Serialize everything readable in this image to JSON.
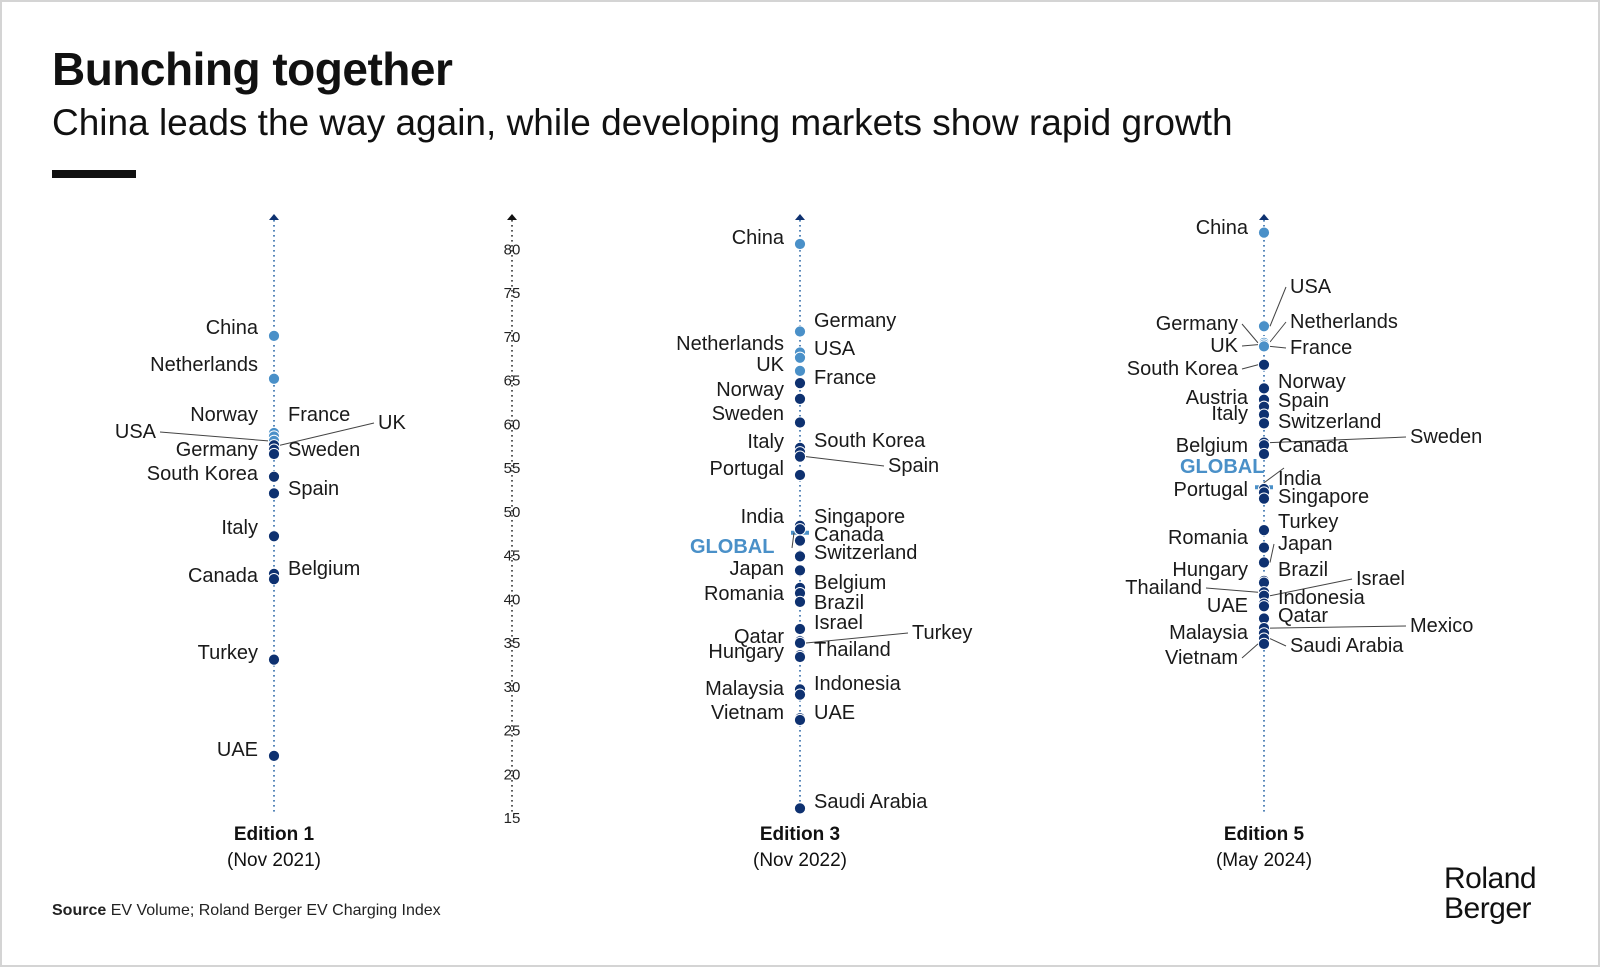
{
  "title": "Bunching together",
  "subtitle": "China leads the way again, while developing markets show rapid growth",
  "source_label": "Source",
  "source_text": "EV Volume; Roland Berger EV Charging Index",
  "logo": {
    "line1": "Roland",
    "line2": "Berger"
  },
  "colors": {
    "light_blue": "#4a90c8",
    "dark_blue": "#0e3170",
    "text": "#1a1a1a"
  },
  "chart_data": {
    "type": "scatter",
    "title": "Bunching together",
    "ylim": [
      15,
      82
    ],
    "yticks": [
      15,
      20,
      25,
      30,
      35,
      40,
      45,
      50,
      55,
      60,
      65,
      70,
      75,
      80
    ],
    "editions": [
      {
        "name": "Edition 1",
        "date": "(Nov 2021)",
        "points": [
          {
            "label": "China",
            "value": 70.1,
            "side": "left",
            "highlight": true
          },
          {
            "label": "Netherlands",
            "value": 65.2,
            "side": "left",
            "highlight": true
          },
          {
            "label": "Norway",
            "value": 59.0,
            "side": "left",
            "highlight": true
          },
          {
            "label": "France",
            "value": 58.6,
            "side": "right",
            "highlight": true
          },
          {
            "label": "USA",
            "value": 58.1,
            "side": "left-far",
            "highlight": true
          },
          {
            "label": "UK",
            "value": 57.6,
            "side": "right-far",
            "highlight": false
          },
          {
            "label": "Germany",
            "value": 57.1,
            "side": "left",
            "highlight": false
          },
          {
            "label": "Sweden",
            "value": 56.6,
            "side": "right",
            "highlight": false
          },
          {
            "label": "South Korea",
            "value": 54.0,
            "side": "left",
            "highlight": false
          },
          {
            "label": "Spain",
            "value": 52.1,
            "side": "right",
            "highlight": false
          },
          {
            "label": "Italy",
            "value": 47.2,
            "side": "left",
            "highlight": false
          },
          {
            "label": "Belgium",
            "value": 42.9,
            "side": "right",
            "highlight": false
          },
          {
            "label": "Canada",
            "value": 42.3,
            "side": "left",
            "highlight": false
          },
          {
            "label": "Turkey",
            "value": 33.1,
            "side": "left",
            "highlight": false
          },
          {
            "label": "UAE",
            "value": 22.1,
            "side": "left",
            "highlight": false
          }
        ]
      },
      {
        "name": "Edition 3",
        "date": "(Nov 2022)",
        "global_label": "GLOBAL",
        "global_value": 47.6,
        "points": [
          {
            "label": "China",
            "value": 80.6,
            "side": "left",
            "highlight": true
          },
          {
            "label": "Germany",
            "value": 70.6,
            "side": "right",
            "highlight": true
          },
          {
            "label": "Netherlands",
            "value": 68.2,
            "side": "left",
            "highlight": true
          },
          {
            "label": "USA",
            "value": 67.6,
            "side": "right",
            "highlight": true
          },
          {
            "label": "UK",
            "value": 66.1,
            "side": "left",
            "highlight": true
          },
          {
            "label": "France",
            "value": 64.7,
            "side": "right",
            "highlight": false
          },
          {
            "label": "Norway",
            "value": 62.9,
            "side": "left",
            "highlight": false
          },
          {
            "label": "Sweden",
            "value": 60.2,
            "side": "left",
            "highlight": false
          },
          {
            "label": "South Korea",
            "value": 57.3,
            "side": "right",
            "highlight": false
          },
          {
            "label": "Italy",
            "value": 56.8,
            "side": "left",
            "highlight": false
          },
          {
            "label": "Spain",
            "value": 56.3,
            "side": "right-far",
            "highlight": false
          },
          {
            "label": "Portugal",
            "value": 54.2,
            "side": "left",
            "highlight": false
          },
          {
            "label": "India",
            "value": 48.4,
            "side": "left",
            "highlight": false
          },
          {
            "label": "Singapore",
            "value": 48.0,
            "side": "right",
            "highlight": false
          },
          {
            "label": "Canada",
            "value": 46.7,
            "side": "right",
            "highlight": false
          },
          {
            "label": "Switzerland",
            "value": 44.9,
            "side": "right",
            "highlight": false
          },
          {
            "label": "Japan",
            "value": 43.3,
            "side": "left",
            "highlight": false
          },
          {
            "label": "Belgium",
            "value": 41.3,
            "side": "right",
            "highlight": false
          },
          {
            "label": "Romania",
            "value": 40.7,
            "side": "left",
            "highlight": false
          },
          {
            "label": "Brazil",
            "value": 39.7,
            "side": "right",
            "highlight": false
          },
          {
            "label": "Israel",
            "value": 36.6,
            "side": "right",
            "highlight": false
          },
          {
            "label": "Qatar",
            "value": 35.2,
            "side": "left",
            "highlight": false
          },
          {
            "label": "Turkey",
            "value": 35.0,
            "side": "right-far",
            "highlight": false
          },
          {
            "label": "Hungary",
            "value": 33.6,
            "side": "left",
            "highlight": false
          },
          {
            "label": "Thailand",
            "value": 33.4,
            "side": "right",
            "highlight": false
          },
          {
            "label": "Indonesia",
            "value": 29.7,
            "side": "right",
            "highlight": false
          },
          {
            "label": "Malaysia",
            "value": 29.1,
            "side": "left",
            "highlight": false
          },
          {
            "label": "Vietnam",
            "value": 26.4,
            "side": "left",
            "highlight": false
          },
          {
            "label": "UAE",
            "value": 26.2,
            "side": "right",
            "highlight": false
          },
          {
            "label": "Saudi Arabia",
            "value": 16.1,
            "side": "right",
            "highlight": false
          }
        ]
      },
      {
        "name": "Edition 5",
        "date": "(May 2024)",
        "global_label": "GLOBAL",
        "global_value": 52.8,
        "points": [
          {
            "label": "China",
            "value": 81.9,
            "side": "left",
            "highlight": true
          },
          {
            "label": "USA",
            "value": 71.2,
            "side": "right",
            "highlight": true
          },
          {
            "label": "Netherlands",
            "value": 69.4,
            "side": "right",
            "highlight": true
          },
          {
            "label": "Germany",
            "value": 69.3,
            "side": "left",
            "highlight": true
          },
          {
            "label": "UK",
            "value": 69.1,
            "side": "left",
            "highlight": true
          },
          {
            "label": "France",
            "value": 68.9,
            "side": "right",
            "highlight": true
          },
          {
            "label": "South Korea",
            "value": 66.8,
            "side": "left",
            "highlight": false
          },
          {
            "label": "Norway",
            "value": 64.1,
            "side": "right",
            "highlight": false
          },
          {
            "label": "Austria",
            "value": 62.8,
            "side": "left",
            "highlight": false
          },
          {
            "label": "Spain",
            "value": 62.0,
            "side": "right",
            "highlight": false
          },
          {
            "label": "Italy",
            "value": 61.1,
            "side": "left",
            "highlight": false
          },
          {
            "label": "Switzerland",
            "value": 60.1,
            "side": "right",
            "highlight": false
          },
          {
            "label": "Sweden",
            "value": 57.9,
            "side": "right-far",
            "highlight": false
          },
          {
            "label": "Belgium",
            "value": 57.6,
            "side": "left",
            "highlight": false
          },
          {
            "label": "Canada",
            "value": 56.6,
            "side": "right",
            "highlight": false
          },
          {
            "label": "India",
            "value": 52.6,
            "side": "right",
            "highlight": false
          },
          {
            "label": "Portugal",
            "value": 52.2,
            "side": "left",
            "highlight": false
          },
          {
            "label": "Singapore",
            "value": 51.5,
            "side": "right",
            "highlight": false
          },
          {
            "label": "Turkey",
            "value": 47.9,
            "side": "right",
            "highlight": false
          },
          {
            "label": "Romania",
            "value": 45.9,
            "side": "left",
            "highlight": false
          },
          {
            "label": "Japan",
            "value": 44.2,
            "side": "right",
            "highlight": false
          },
          {
            "label": "Hungary",
            "value": 42.1,
            "side": "left",
            "highlight": false
          },
          {
            "label": "Brazil",
            "value": 41.9,
            "side": "right",
            "highlight": false
          },
          {
            "label": "Thailand",
            "value": 40.8,
            "side": "left",
            "highlight": false
          },
          {
            "label": "Israel",
            "value": 40.4,
            "side": "right-far",
            "highlight": false
          },
          {
            "label": "Indonesia",
            "value": 39.5,
            "side": "right",
            "highlight": false
          },
          {
            "label": "UAE",
            "value": 39.2,
            "side": "left",
            "highlight": false
          },
          {
            "label": "Qatar",
            "value": 37.8,
            "side": "right",
            "highlight": false
          },
          {
            "label": "Mexico",
            "value": 36.7,
            "side": "right-far",
            "highlight": false
          },
          {
            "label": "Malaysia",
            "value": 36.1,
            "side": "left",
            "highlight": false
          },
          {
            "label": "Saudi Arabia",
            "value": 35.5,
            "side": "right",
            "highlight": false
          },
          {
            "label": "Vietnam",
            "value": 34.9,
            "side": "left",
            "highlight": false
          }
        ]
      }
    ]
  }
}
